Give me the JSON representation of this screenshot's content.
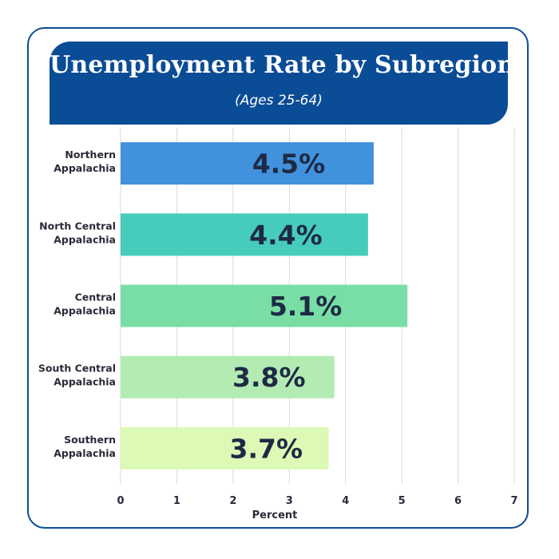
{
  "title": "Unemployment Rate by Subregion",
  "subtitle": "(Ages 25-64)",
  "chart_data": {
    "type": "bar",
    "orientation": "horizontal",
    "categories": [
      [
        "Northern",
        "Appalachia"
      ],
      [
        "North Central",
        "Appalachia"
      ],
      [
        "Central",
        "Appalachia"
      ],
      [
        "South Central",
        "Appalachia"
      ],
      [
        "Southern",
        "Appalachia"
      ]
    ],
    "values": [
      4.5,
      4.4,
      5.1,
      3.8,
      3.7
    ],
    "data_labels": [
      "4.5%",
      "4.4%",
      "5.1%",
      "3.8%",
      "3.7%"
    ],
    "colors": [
      "#4191dc",
      "#47ccbc",
      "#78dea5",
      "#b3ebb3",
      "#dcf9b5"
    ],
    "xlabel": "Percent",
    "xlim": [
      0,
      7
    ],
    "xticks": [
      "0",
      "1",
      "2",
      "3",
      "4",
      "5",
      "6",
      "7"
    ],
    "grid": true,
    "legend": "none"
  },
  "colors": {
    "accent": "#0b4c96",
    "grid": "#d9d9d9",
    "label_text": "#2a2a38",
    "value_text": "#1e2a44"
  }
}
